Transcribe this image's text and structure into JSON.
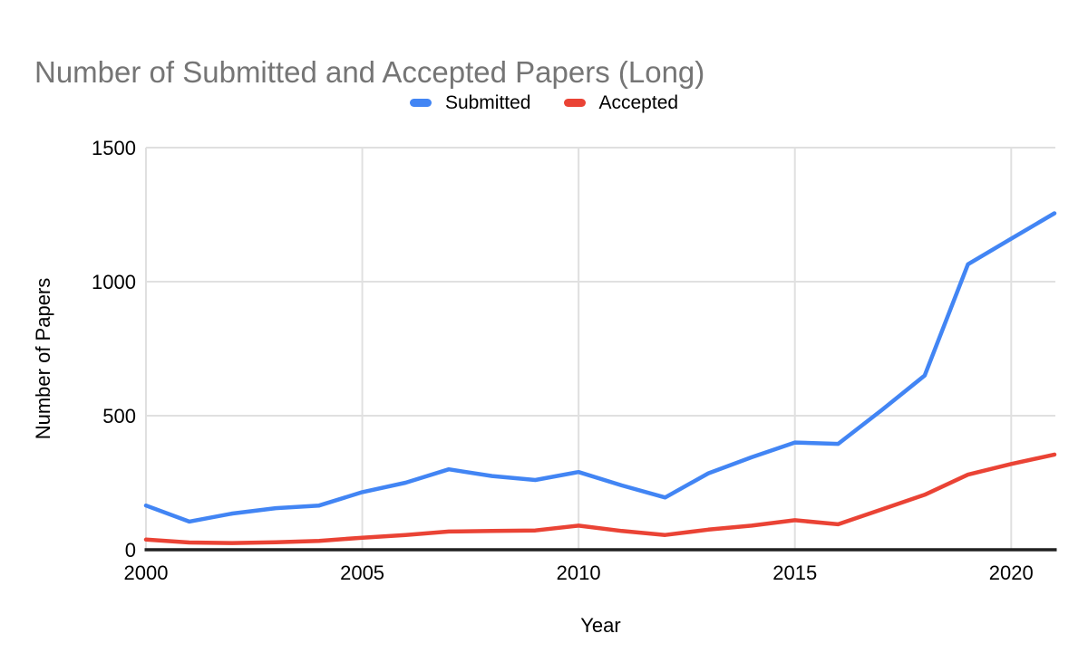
{
  "chart_data": {
    "type": "line",
    "title": "Number of Submitted and Accepted Papers (Long)",
    "xlabel": "Year",
    "ylabel": "Number of Papers",
    "x": [
      2000,
      2001,
      2002,
      2003,
      2004,
      2005,
      2006,
      2007,
      2008,
      2009,
      2010,
      2011,
      2012,
      2013,
      2014,
      2015,
      2016,
      2017,
      2018,
      2019,
      2020,
      2021
    ],
    "series": [
      {
        "name": "Submitted",
        "color": "#4285F4",
        "values": [
          165,
          105,
          135,
          155,
          165,
          215,
          250,
          300,
          275,
          260,
          290,
          240,
          195,
          285,
          345,
          400,
          395,
          520,
          650,
          1065,
          1160,
          1255
        ]
      },
      {
        "name": "Accepted",
        "color": "#EA4335",
        "values": [
          38,
          27,
          25,
          28,
          33,
          45,
          55,
          68,
          70,
          72,
          90,
          70,
          55,
          75,
          90,
          110,
          95,
          150,
          205,
          280,
          320,
          355
        ]
      }
    ],
    "x_ticks": [
      2000,
      2005,
      2010,
      2015,
      2020
    ],
    "y_ticks": [
      0,
      500,
      1000,
      1500
    ],
    "xlim": [
      2000,
      2021
    ],
    "ylim": [
      0,
      1500
    ],
    "grid": true,
    "legend_position": "top",
    "styles": {
      "title_color": "#757575",
      "text_color": "#000000",
      "grid_color": "#E0E0E0",
      "axis_color": "#212121",
      "background": "#FFFFFF"
    }
  }
}
